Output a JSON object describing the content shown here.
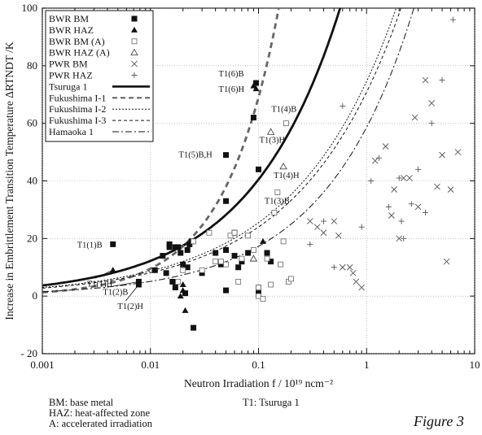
{
  "chart_data": {
    "type": "scatter",
    "x_scale": "log",
    "xlim": [
      0.001,
      10
    ],
    "ylim": [
      -20,
      100
    ],
    "x_ticks": [
      0.001,
      0.01,
      0.1,
      1,
      10
    ],
    "x_tick_labels": [
      "0.001",
      "0.01",
      "0.1",
      "1",
      "10"
    ],
    "y_ticks": [
      -20,
      0,
      20,
      40,
      60,
      80,
      100
    ],
    "y_tick_labels": [
      "- 20",
      "0",
      "20",
      "40",
      "60",
      "80",
      "100"
    ],
    "xlabel": "Neutron Irradiation  f  / 10¹⁹ ncm⁻²",
    "ylabel": "Increase in Embrittlement Transition Temperature  ΔRTNDT  /K",
    "grid": true,
    "legend_position": "top-left",
    "series": [
      {
        "name": "BWR BM",
        "marker": "filled-square",
        "x": [
          0.0045,
          0.0078,
          0.0078,
          0.011,
          0.013,
          0.014,
          0.015,
          0.015,
          0.016,
          0.017,
          0.017,
          0.018,
          0.019,
          0.02,
          0.021,
          0.022,
          0.022,
          0.023,
          0.024,
          0.025,
          0.03,
          0.04,
          0.045,
          0.05,
          0.05,
          0.05,
          0.05,
          0.06,
          0.06,
          0.065,
          0.07,
          0.08,
          0.09,
          0.095,
          0.1,
          0.1,
          0.12,
          0.13
        ],
        "y": [
          18,
          5,
          4,
          9,
          14,
          8,
          18,
          17,
          5,
          3,
          17,
          17,
          15,
          11,
          1,
          10,
          16,
          18,
          19,
          -11,
          8,
          15,
          11,
          33,
          49,
          16,
          2,
          22,
          14,
          10,
          12,
          15,
          62,
          74,
          44,
          1,
          15,
          12
        ]
      },
      {
        "name": "BWR HAZ",
        "marker": "filled-triangle",
        "x": [
          0.0045,
          0.019,
          0.02,
          0.021,
          0.02,
          0.09,
          0.095,
          0.11
        ],
        "y": [
          9,
          0,
          2,
          -5,
          4,
          73,
          72,
          19
        ]
      },
      {
        "name": "BWR BM (A)",
        "marker": "open-square",
        "x": [
          0.018,
          0.02,
          0.025,
          0.03,
          0.035,
          0.04,
          0.045,
          0.05,
          0.055,
          0.06,
          0.065,
          0.07,
          0.08,
          0.09,
          0.1,
          0.1,
          0.1,
          0.11,
          0.12,
          0.13,
          0.14,
          0.15,
          0.16,
          0.17,
          0.18,
          0.19,
          0.2
        ],
        "y": [
          5,
          9,
          19,
          9,
          22,
          12,
          12,
          11,
          21,
          22,
          5,
          13,
          21,
          16,
          3,
          0,
          3,
          -1,
          13,
          4,
          29,
          36,
          11,
          19,
          60,
          5,
          6
        ]
      },
      {
        "name": "BWR HAZ (A)",
        "marker": "open-triangle",
        "x": [
          0.13,
          0.17,
          0.09
        ],
        "y": [
          57,
          45,
          13
        ]
      },
      {
        "name": "PWR BM",
        "marker": "x",
        "x": [
          0.3,
          0.35,
          0.4,
          0.5,
          0.55,
          0.6,
          0.7,
          0.75,
          0.8,
          0.9,
          1.2,
          1.5,
          1.7,
          1.8,
          2,
          2.2,
          2.5,
          2.8,
          3,
          3.5,
          4,
          4.5,
          5,
          5.5,
          6,
          7
        ],
        "y": [
          26,
          24,
          22,
          26,
          21,
          10,
          10,
          8,
          5,
          3,
          47,
          52,
          28,
          37,
          20,
          41,
          41,
          62,
          31,
          75,
          67,
          38,
          49,
          12,
          37,
          50
        ]
      },
      {
        "name": "PWR HAZ",
        "marker": "plus",
        "x": [
          0.3,
          0.4,
          0.5,
          0.6,
          0.9,
          1.1,
          1.3,
          1.6,
          2,
          2.2,
          2.6,
          3,
          3.5,
          4,
          5,
          6.3,
          2.1
        ],
        "y": [
          18,
          26,
          10,
          66,
          24,
          40,
          48,
          31,
          41,
          20,
          32,
          44,
          29,
          60,
          75,
          96,
          26
        ]
      }
    ],
    "trend_curves": [
      {
        "name": "Tsuruga 1",
        "style": "thick-solid"
      },
      {
        "name": "Fukushima I-1",
        "style": "thick-dashed"
      },
      {
        "name": "Fukushima I-2",
        "style": "dotted"
      },
      {
        "name": "Fukushima I-3",
        "style": "dashed"
      },
      {
        "name": "Hamaoka 1",
        "style": "dash-dot"
      }
    ],
    "annotations": [
      {
        "text": "T1(6)B",
        "x": 0.095,
        "y": 74
      },
      {
        "text": "T1(6)H",
        "x": 0.095,
        "y": 72
      },
      {
        "text": "T1(4)B",
        "x": 0.18,
        "y": 60
      },
      {
        "text": "T1(3)H",
        "x": 0.13,
        "y": 57
      },
      {
        "text": "T1(5)B,H",
        "x": 0.05,
        "y": 49
      },
      {
        "text": "T1(4)H",
        "x": 0.17,
        "y": 45
      },
      {
        "text": "T1(3)B",
        "x": 0.15,
        "y": 36
      },
      {
        "text": "T1(1)B",
        "x": 0.0045,
        "y": 18
      },
      {
        "text": "T1(1)H",
        "x": 0.0045,
        "y": 9
      },
      {
        "text": "T1(2)B",
        "x": 0.0078,
        "y": 5
      },
      {
        "text": "T1(2)H",
        "x": 0.0078,
        "y": 4
      }
    ]
  },
  "footnotes": {
    "bm": "BM:    base metal",
    "haz": "HAZ:   heat-affected zone",
    "a": "A:      accelerated irradiation",
    "t1": "T1:   Tsuruga 1"
  },
  "figure_label": "Figure 3"
}
